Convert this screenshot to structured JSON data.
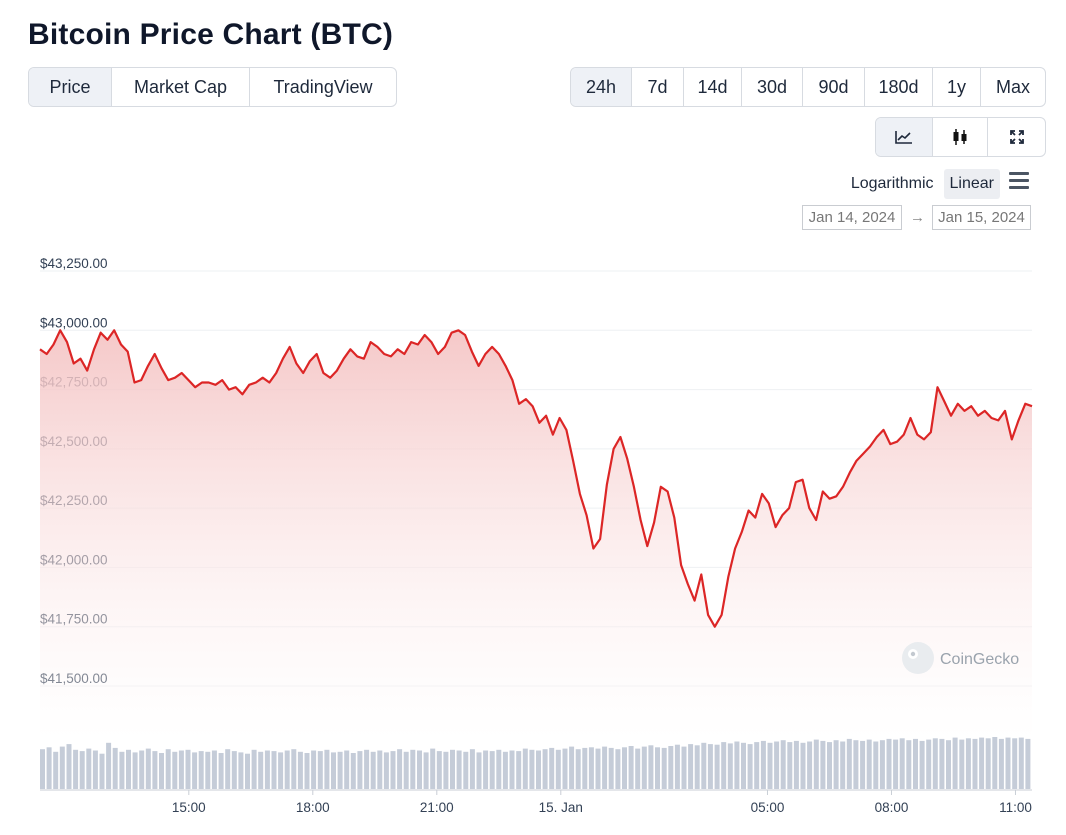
{
  "title": "Bitcoin Price Chart (BTC)",
  "view_tabs": [
    {
      "label": "Price",
      "active": true
    },
    {
      "label": "Market Cap",
      "active": false
    },
    {
      "label": "TradingView",
      "active": false
    }
  ],
  "range_tabs": [
    {
      "label": "24h",
      "active": true
    },
    {
      "label": "7d",
      "active": false
    },
    {
      "label": "14d",
      "active": false
    },
    {
      "label": "30d",
      "active": false
    },
    {
      "label": "90d",
      "active": false
    },
    {
      "label": "180d",
      "active": false
    },
    {
      "label": "1y",
      "active": false
    },
    {
      "label": "Max",
      "active": false
    }
  ],
  "chart_type_icons": [
    "line-chart-icon",
    "candlestick-icon",
    "expand-icon"
  ],
  "scale": {
    "log_label": "Logarithmic",
    "linear_label": "Linear",
    "selected": "Linear"
  },
  "date_range": {
    "from": "Jan 14, 2024",
    "arrow": "→",
    "to": "Jan 15, 2024"
  },
  "watermark": "CoinGecko",
  "colors": {
    "line": "#dc2626",
    "area_top": "#f8d7d7",
    "volume": "#c5ccd8",
    "accent_bg": "#eef1f6"
  },
  "chart_data": {
    "type": "area",
    "title": "",
    "xlabel": "",
    "ylabel": "",
    "ylim": [
      41400,
      43300
    ],
    "y_ticks": [
      "$43,250.00",
      "$43,000.00",
      "$42,750.00",
      "$42,500.00",
      "$42,250.00",
      "$42,000.00",
      "$41,750.00",
      "$41,500.00"
    ],
    "y_tick_values": [
      43250,
      43000,
      42750,
      42500,
      42250,
      42000,
      41750,
      41500
    ],
    "x_ticks": [
      "15:00",
      "18:00",
      "21:00",
      "15. Jan",
      "05:00",
      "08:00",
      "11:00"
    ],
    "x_tick_hours": [
      15,
      18,
      21,
      24,
      29,
      32,
      35
    ],
    "x_start_hour": 11.4,
    "x_end_hour": 35.4,
    "grid": true,
    "legend": "none",
    "series": [
      {
        "values": [
          42920,
          42900,
          42940,
          43000,
          42950,
          42860,
          42880,
          42830,
          42920,
          42990,
          42960,
          43000,
          42940,
          42910,
          42780,
          42790,
          42850,
          42900,
          42840,
          42790,
          42800,
          42820,
          42790,
          42760,
          42780,
          42780,
          42770,
          42790,
          42750,
          42760,
          42730,
          42770,
          42780,
          42800,
          42780,
          42820,
          42880,
          42930,
          42860,
          42820,
          42870,
          42900,
          42820,
          42800,
          42830,
          42880,
          42920,
          42890,
          42880,
          42950,
          42930,
          42900,
          42890,
          42920,
          42900,
          42950,
          42940,
          42980,
          42950,
          42900,
          42930,
          42990,
          43000,
          42980,
          42910,
          42850,
          42900,
          42930,
          42900,
          42850,
          42790,
          42690,
          42710,
          42680,
          42610,
          42640,
          42560,
          42630,
          42580,
          42450,
          42310,
          42220,
          42080,
          42120,
          42350,
          42500,
          42550,
          42460,
          42340,
          42200,
          42090,
          42190,
          42340,
          42320,
          42210,
          42010,
          41930,
          41860,
          41970,
          41800,
          41750,
          41800,
          41960,
          42080,
          42150,
          42240,
          42210,
          42310,
          42270,
          42170,
          42220,
          42250,
          42360,
          42370,
          42250,
          42200,
          42320,
          42290,
          42300,
          42340,
          42400,
          42450,
          42480,
          42510,
          42550,
          42580,
          42520,
          42530,
          42560,
          42630,
          42560,
          42540,
          42570,
          42760,
          42700,
          42640,
          42690,
          42660,
          42680,
          42640,
          42660,
          42630,
          42620,
          42660,
          42540,
          42620,
          42690,
          42680
        ]
      }
    ],
    "volume": [
      62,
      65,
      58,
      66,
      70,
      61,
      59,
      63,
      60,
      55,
      72,
      64,
      58,
      61,
      57,
      60,
      63,
      59,
      56,
      62,
      58,
      60,
      61,
      57,
      59,
      58,
      60,
      56,
      62,
      59,
      57,
      55,
      61,
      58,
      60,
      59,
      57,
      60,
      62,
      58,
      56,
      60,
      59,
      61,
      57,
      58,
      60,
      56,
      59,
      61,
      58,
      60,
      57,
      59,
      62,
      58,
      61,
      60,
      57,
      63,
      59,
      58,
      61,
      60,
      58,
      62,
      57,
      60,
      59,
      61,
      58,
      60,
      59,
      63,
      61,
      60,
      62,
      64,
      61,
      63,
      66,
      62,
      64,
      65,
      63,
      66,
      64,
      62,
      65,
      67,
      63,
      66,
      68,
      65,
      64,
      67,
      69,
      66,
      70,
      68,
      72,
      70,
      69,
      73,
      71,
      74,
      72,
      70,
      73,
      75,
      72,
      74,
      76,
      73,
      75,
      72,
      74,
      77,
      75,
      73,
      76,
      74,
      78,
      76,
      75,
      77,
      74,
      76,
      78,
      77,
      79,
      76,
      78,
      75,
      77,
      79,
      78,
      76,
      80,
      77,
      79,
      78,
      80,
      79,
      81,
      78,
      80,
      79,
      80,
      78
    ]
  }
}
